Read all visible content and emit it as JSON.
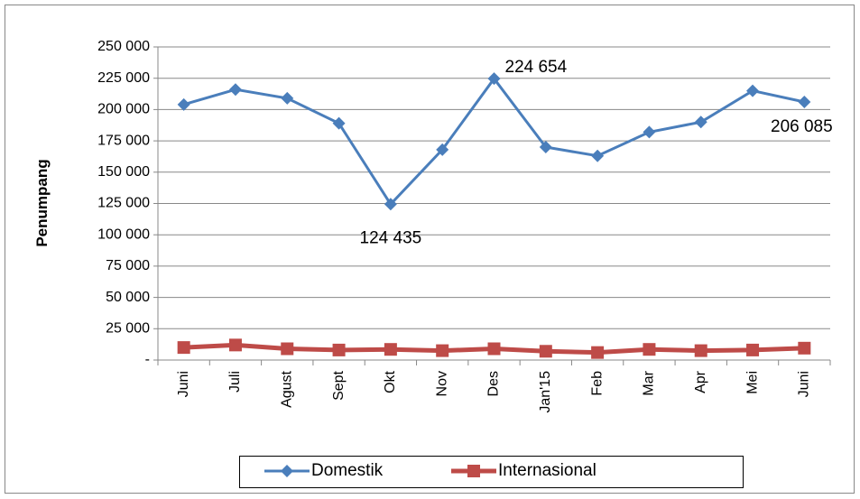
{
  "chart_data": {
    "type": "line",
    "y_label": "Penumpang",
    "categories": [
      "Juni",
      "Juli",
      "Agust",
      "Sept",
      "Okt",
      "Nov",
      "Des",
      "Jan'15",
      "Feb",
      "Mar",
      "Apr",
      "Mei",
      "Juni"
    ],
    "series": [
      {
        "name": "Domestik",
        "color": "#4a7ebb",
        "marker": "diamond",
        "values": [
          204000,
          216000,
          209000,
          189000,
          124435,
          168000,
          224654,
          170000,
          163000,
          182000,
          190000,
          215000,
          206085
        ],
        "value_labels": [
          null,
          null,
          null,
          null,
          "124 435",
          null,
          "224 654",
          null,
          null,
          null,
          null,
          null,
          "206 085"
        ]
      },
      {
        "name": "Internasional",
        "color": "#be4b48",
        "marker": "square",
        "values": [
          10000,
          12000,
          9000,
          8000,
          8500,
          7500,
          9000,
          7000,
          6000,
          8500,
          7500,
          8000,
          9500
        ]
      }
    ],
    "ylim": [
      0,
      250000
    ],
    "yticks": [
      {
        "value": 0,
        "label": "-"
      },
      {
        "value": 25000,
        "label": "25 000"
      },
      {
        "value": 50000,
        "label": "50 000"
      },
      {
        "value": 75000,
        "label": "75 000"
      },
      {
        "value": 100000,
        "label": "100 000"
      },
      {
        "value": 125000,
        "label": "125 000"
      },
      {
        "value": 150000,
        "label": "150 000"
      },
      {
        "value": 175000,
        "label": "175 000"
      },
      {
        "value": 200000,
        "label": "200 000"
      },
      {
        "value": 225000,
        "label": "225 000"
      },
      {
        "value": 250000,
        "label": "250 000"
      }
    ],
    "grid": true,
    "legend": "bottom"
  }
}
